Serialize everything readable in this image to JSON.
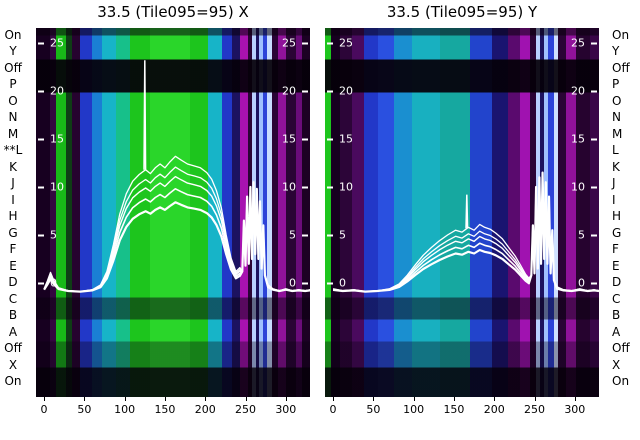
{
  "row_labels": {
    "labels": [
      "On",
      "Y",
      "Off",
      "P",
      "O",
      "N",
      "M",
      "L",
      "K",
      "J",
      "I",
      "H",
      "G",
      "F",
      "E",
      "D",
      "C",
      "B",
      "A",
      "Off",
      "X",
      "On"
    ],
    "star_index": 7,
    "star_marker": "**"
  },
  "chart_data": [
    {
      "type": "heatmap_with_line_overlay",
      "title": "33.5 (Tile095=95) X",
      "xlabel": "",
      "ylabel": "",
      "xlim": [
        -10,
        330
      ],
      "ylim": [
        -11.9,
        26.6
      ],
      "xticks": [
        "0",
        "50",
        "100",
        "150",
        "200",
        "250",
        "300"
      ],
      "yticks": [
        "25",
        "20",
        "15",
        "10",
        "5",
        "0"
      ],
      "stripes": [
        [
          0.0,
          0.051,
          "#170020"
        ],
        [
          0.051,
          0.073,
          "#33073f"
        ],
        [
          0.073,
          0.109,
          "#18b818"
        ],
        [
          0.109,
          0.131,
          "#0f3d16"
        ],
        [
          0.131,
          0.161,
          "#26032f"
        ],
        [
          0.161,
          0.204,
          "#2238c8"
        ],
        [
          0.204,
          0.241,
          "#1a7fd4"
        ],
        [
          0.241,
          0.292,
          "#17b4c8"
        ],
        [
          0.292,
          0.343,
          "#17c08a"
        ],
        [
          0.343,
          0.416,
          "#1dc51d"
        ],
        [
          0.416,
          0.562,
          "#2ad62a"
        ],
        [
          0.562,
          0.628,
          "#1dc51d"
        ],
        [
          0.628,
          0.679,
          "#17b4c8"
        ],
        [
          0.679,
          0.715,
          "#2238c8"
        ],
        [
          0.715,
          0.745,
          "#1c1260"
        ],
        [
          0.745,
          0.774,
          "#a812b0"
        ],
        [
          0.774,
          0.788,
          "#2a0435"
        ],
        [
          0.788,
          0.803,
          "#b8d0ff"
        ],
        [
          0.803,
          0.814,
          "#1c1260"
        ],
        [
          0.814,
          0.828,
          "#9fc0ff"
        ],
        [
          0.828,
          0.843,
          "#2d43d8"
        ],
        [
          0.843,
          0.861,
          "#c8dcff"
        ],
        [
          0.861,
          0.883,
          "#2a0435"
        ],
        [
          0.883,
          0.912,
          "#90129a"
        ],
        [
          0.912,
          0.949,
          "#2a0435"
        ],
        [
          0.949,
          0.971,
          "#6a0c7a"
        ],
        [
          0.971,
          1.0,
          "#1c0124"
        ]
      ],
      "bands": [
        [
          0.0,
          0.02,
          "rgba(8,0,12,0.55)"
        ],
        [
          0.085,
          0.175,
          "rgba(5,0,9,0.93)"
        ],
        [
          0.73,
          0.79,
          "rgba(8,0,14,0.50)"
        ],
        [
          0.85,
          0.92,
          "rgba(8,0,14,0.35)"
        ],
        [
          0.92,
          1.0,
          "rgba(5,0,9,0.88)"
        ]
      ],
      "trace": {
        "color": "#ffffff",
        "baseline": -0.9,
        "scales": [
          1.0,
          0.92,
          0.85,
          0.76,
          0.66
        ],
        "profile": [
          [
            0,
            -0.6
          ],
          [
            4,
            0.2
          ],
          [
            8,
            1.1
          ],
          [
            12,
            0.3
          ],
          [
            18,
            -0.5
          ],
          [
            30,
            -0.8
          ],
          [
            45,
            -0.9
          ],
          [
            60,
            -0.7
          ],
          [
            70,
            -0.2
          ],
          [
            78,
            1.2
          ],
          [
            86,
            4.0
          ],
          [
            94,
            7.2
          ],
          [
            102,
            9.3
          ],
          [
            110,
            10.6
          ],
          [
            118,
            11.3
          ],
          [
            126,
            11.8
          ],
          [
            132,
            11.4
          ],
          [
            138,
            12.0
          ],
          [
            144,
            12.4
          ],
          [
            150,
            12.0
          ],
          [
            156,
            12.6
          ],
          [
            163,
            13.2
          ],
          [
            170,
            12.8
          ],
          [
            178,
            12.4
          ],
          [
            186,
            12.2
          ],
          [
            194,
            12.0
          ],
          [
            202,
            11.5
          ],
          [
            208,
            10.8
          ],
          [
            214,
            9.6
          ],
          [
            220,
            7.8
          ],
          [
            226,
            5.0
          ],
          [
            232,
            2.6
          ],
          [
            238,
            1.2
          ],
          [
            243,
            1.6
          ],
          [
            246,
            1.2
          ],
          [
            248,
            6.5
          ],
          [
            250,
            1.8
          ],
          [
            252,
            9.0
          ],
          [
            254,
            2.0
          ],
          [
            256,
            10.0
          ],
          [
            258,
            2.5
          ],
          [
            260,
            10.5
          ],
          [
            262,
            3.0
          ],
          [
            264,
            9.8
          ],
          [
            266,
            2.5
          ],
          [
            268,
            8.5
          ],
          [
            270,
            1.5
          ],
          [
            272,
            6.0
          ],
          [
            274,
            0.8
          ],
          [
            278,
            -0.2
          ],
          [
            284,
            -0.6
          ],
          [
            292,
            -0.8
          ],
          [
            300,
            -0.6
          ],
          [
            308,
            -0.8
          ],
          [
            316,
            -0.7
          ],
          [
            324,
            -0.8
          ],
          [
            330,
            -0.7
          ]
        ],
        "spike": [
          [
            124,
            11.8
          ],
          [
            125,
            23.2
          ],
          [
            126,
            11.8
          ]
        ]
      }
    },
    {
      "type": "heatmap_with_line_overlay",
      "title": "33.5 (Tile095=95) Y",
      "xlabel": "",
      "ylabel": "",
      "xlim": [
        -10,
        330
      ],
      "ylim": [
        -11.9,
        26.6
      ],
      "xticks": [
        "0",
        "50",
        "100",
        "150",
        "200",
        "250",
        "300"
      ],
      "yticks": [
        "25",
        "20",
        "15",
        "10",
        "5",
        "0"
      ],
      "stripes": [
        [
          0.0,
          0.022,
          "#1dc51d"
        ],
        [
          0.022,
          0.055,
          "#170020"
        ],
        [
          0.055,
          0.099,
          "#2c0538"
        ],
        [
          0.099,
          0.142,
          "#4a0a5e"
        ],
        [
          0.142,
          0.193,
          "#2238c8"
        ],
        [
          0.193,
          0.252,
          "#2a50e0"
        ],
        [
          0.252,
          0.317,
          "#1a8fd0"
        ],
        [
          0.317,
          0.42,
          "#18b0c0"
        ],
        [
          0.42,
          0.529,
          "#16a8a0"
        ],
        [
          0.529,
          0.609,
          "#2244cc"
        ],
        [
          0.609,
          0.668,
          "#1a1470"
        ],
        [
          0.668,
          0.712,
          "#5a0a6e"
        ],
        [
          0.712,
          0.748,
          "#a012b0"
        ],
        [
          0.748,
          0.77,
          "#2a0435"
        ],
        [
          0.77,
          0.785,
          "#b8d0ff"
        ],
        [
          0.785,
          0.799,
          "#1c1260"
        ],
        [
          0.799,
          0.814,
          "#9fc0ff"
        ],
        [
          0.814,
          0.836,
          "#2d43d8"
        ],
        [
          0.836,
          0.85,
          "#cfe0ff"
        ],
        [
          0.85,
          0.88,
          "#2a0435"
        ],
        [
          0.88,
          0.916,
          "#90129a"
        ],
        [
          0.916,
          0.967,
          "#26032f"
        ],
        [
          0.967,
          1.0,
          "#3a0648"
        ]
      ],
      "bands": [
        [
          0.0,
          0.02,
          "rgba(8,0,12,0.55)"
        ],
        [
          0.085,
          0.175,
          "rgba(5,0,9,0.93)"
        ],
        [
          0.73,
          0.79,
          "rgba(8,0,14,0.50)"
        ],
        [
          0.85,
          0.92,
          "rgba(8,0,14,0.35)"
        ],
        [
          0.92,
          1.0,
          "rgba(5,0,9,0.88)"
        ]
      ],
      "trace": {
        "color": "#ffffff",
        "baseline": -0.9,
        "scales": [
          1.0,
          0.9,
          0.82,
          0.72,
          0.62
        ],
        "profile": [
          [
            0,
            -0.6
          ],
          [
            12,
            -0.8
          ],
          [
            26,
            -0.7
          ],
          [
            40,
            -0.9
          ],
          [
            55,
            -0.8
          ],
          [
            70,
            -0.6
          ],
          [
            82,
            -0.1
          ],
          [
            92,
            0.8
          ],
          [
            102,
            1.9
          ],
          [
            112,
            2.9
          ],
          [
            122,
            3.7
          ],
          [
            132,
            4.4
          ],
          [
            142,
            5.0
          ],
          [
            152,
            5.5
          ],
          [
            160,
            5.3
          ],
          [
            168,
            5.8
          ],
          [
            175,
            5.5
          ],
          [
            182,
            6.1
          ],
          [
            188,
            5.8
          ],
          [
            195,
            5.6
          ],
          [
            202,
            5.2
          ],
          [
            210,
            4.6
          ],
          [
            218,
            3.7
          ],
          [
            226,
            2.8
          ],
          [
            233,
            1.8
          ],
          [
            239,
            0.9
          ],
          [
            243,
            0.5
          ],
          [
            246,
            0.8
          ],
          [
            248,
            6.0
          ],
          [
            250,
            1.0
          ],
          [
            252,
            10.0
          ],
          [
            254,
            1.5
          ],
          [
            256,
            11.0
          ],
          [
            258,
            2.0
          ],
          [
            260,
            11.5
          ],
          [
            262,
            2.5
          ],
          [
            264,
            10.5
          ],
          [
            266,
            2.0
          ],
          [
            268,
            9.0
          ],
          [
            270,
            1.0
          ],
          [
            272,
            5.5
          ],
          [
            274,
            0.3
          ],
          [
            278,
            -0.4
          ],
          [
            286,
            -0.7
          ],
          [
            296,
            -0.8
          ],
          [
            306,
            -0.6
          ],
          [
            316,
            -0.8
          ],
          [
            324,
            -0.7
          ],
          [
            330,
            -0.8
          ]
        ],
        "spike": [
          [
            165,
            5.7
          ],
          [
            166,
            9.2
          ],
          [
            167,
            5.7
          ]
        ]
      }
    }
  ]
}
